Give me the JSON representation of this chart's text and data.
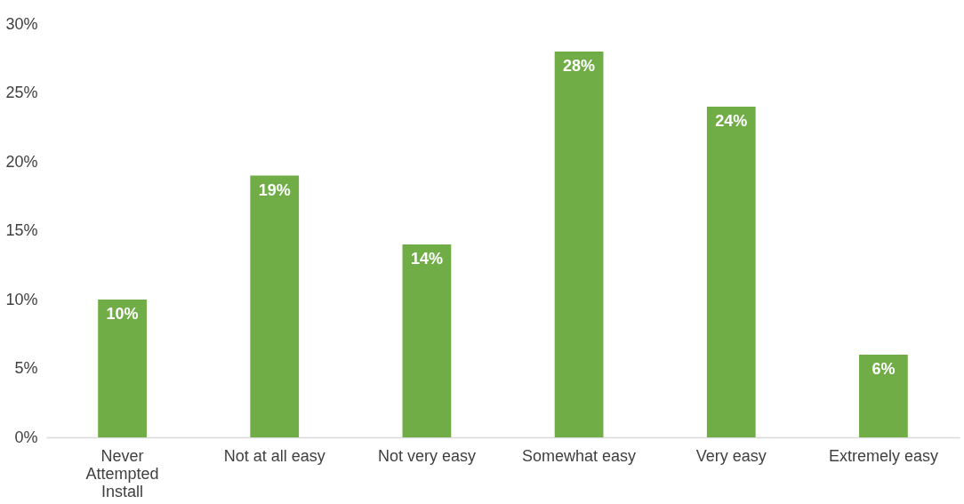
{
  "chart_data": {
    "type": "bar",
    "categories": [
      "Never Attempted Install",
      "Not at all easy",
      "Not very easy",
      "Somewhat easy",
      "Very easy",
      "Extremely easy"
    ],
    "values": [
      10,
      19,
      14,
      28,
      24,
      6
    ],
    "value_labels": [
      "10%",
      "19%",
      "14%",
      "28%",
      "24%",
      "6%"
    ],
    "color": "#70ad47",
    "ylim": [
      0,
      30
    ],
    "yticks": [
      {
        "value": 0,
        "label": "0%"
      },
      {
        "value": 5,
        "label": "5%"
      },
      {
        "value": 10,
        "label": "10%"
      },
      {
        "value": 15,
        "label": "15%"
      },
      {
        "value": 20,
        "label": "20%"
      },
      {
        "value": 25,
        "label": "25%"
      },
      {
        "value": 30,
        "label": "30%"
      }
    ],
    "grid": false
  }
}
